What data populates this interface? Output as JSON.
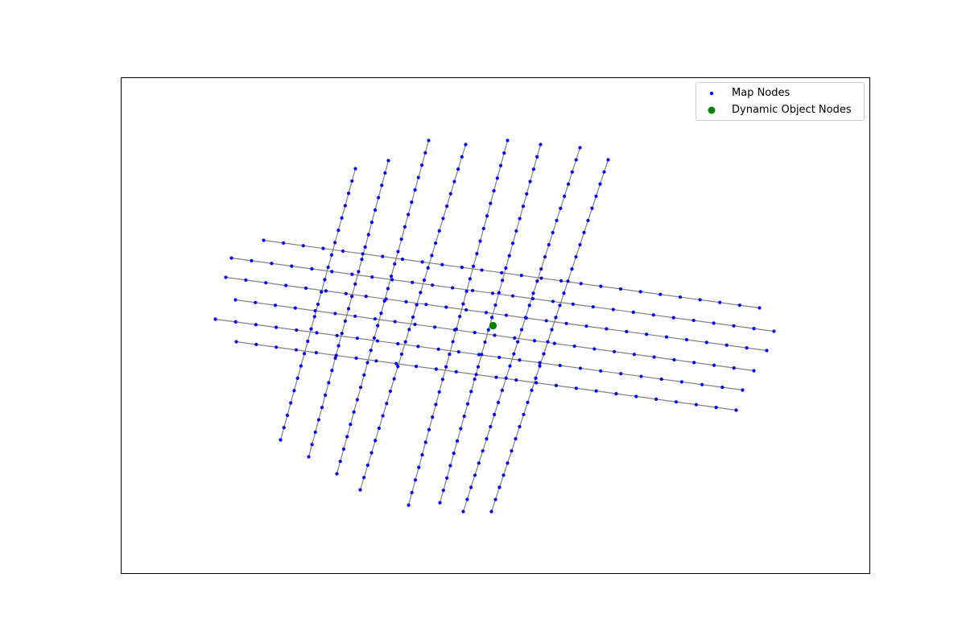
{
  "chart_data": {
    "type": "scatter",
    "title": "",
    "xlabel": "",
    "ylabel": "",
    "axes_ticks": "none",
    "grid": false,
    "legend_placement": "top-right",
    "xlim": [
      0,
      930
    ],
    "ylim": [
      0,
      616
    ],
    "edge_color": "#808080",
    "series": [
      {
        "name": "Map Nodes",
        "color": "#0000ff",
        "marker": "small-dot"
      },
      {
        "name": "Dynamic Object Nodes",
        "color": "#008000",
        "marker": "large-dot"
      }
    ],
    "roads": [
      {
        "start": [
          198,
          450
        ],
        "end": [
          291,
          113
        ],
        "nodes": 23
      },
      {
        "start": [
          233,
          471
        ],
        "end": [
          332,
          103
        ],
        "nodes": 25
      },
      {
        "start": [
          268,
          492
        ],
        "end": [
          382,
          78
        ],
        "nodes": 28
      },
      {
        "start": [
          297,
          512
        ],
        "end": [
          428,
          83
        ],
        "nodes": 29
      },
      {
        "start": [
          357,
          531
        ],
        "end": [
          480,
          78
        ],
        "nodes": 30
      },
      {
        "start": [
          396,
          528
        ],
        "end": [
          521,
          83
        ],
        "nodes": 30
      },
      {
        "start": [
          425,
          539
        ],
        "end": [
          570,
          87
        ],
        "nodes": 31
      },
      {
        "start": [
          460,
          539
        ],
        "end": [
          605,
          102
        ],
        "nodes": 30
      },
      {
        "start": [
          143,
          328
        ],
        "end": [
          764,
          413
        ],
        "nodes": 26
      },
      {
        "start": [
          117,
          300
        ],
        "end": [
          772,
          388
        ],
        "nodes": 27
      },
      {
        "start": [
          142,
          276
        ],
        "end": [
          786,
          364
        ],
        "nodes": 27
      },
      {
        "start": [
          130,
          248
        ],
        "end": [
          802,
          339
        ],
        "nodes": 28
      },
      {
        "start": [
          137,
          224
        ],
        "end": [
          811,
          315
        ],
        "nodes": 28
      },
      {
        "start": [
          177,
          202
        ],
        "end": [
          793,
          286
        ],
        "nodes": 26
      }
    ],
    "dynamic_objects": [
      {
        "x": 462,
        "y": 308
      }
    ]
  }
}
